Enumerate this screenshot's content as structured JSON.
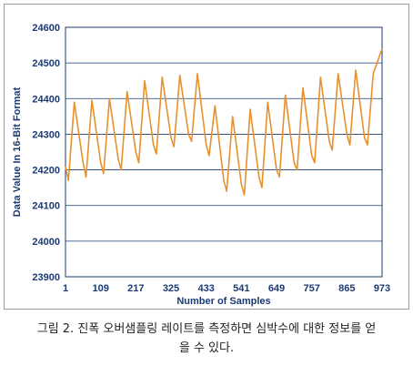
{
  "chart_data": {
    "type": "line",
    "xlabel": "Number of Samples",
    "ylabel": "Data Value In 16-Bit Format",
    "ylim": [
      23900,
      24600
    ],
    "xlim": [
      1,
      973
    ],
    "yticks": [
      "24600",
      "24500",
      "24400",
      "24300",
      "24200",
      "24100",
      "24000",
      "23900"
    ],
    "xticks": [
      "1",
      "109",
      "217",
      "325",
      "433",
      "541",
      "649",
      "757",
      "865",
      "973"
    ],
    "grid": "horizontal",
    "series": [
      {
        "color": "#e8902b",
        "x": [
          1,
          10,
          28,
          55,
          64,
          82,
          109,
          118,
          136,
          163,
          172,
          190,
          217,
          226,
          244,
          271,
          280,
          298,
          325,
          334,
          352,
          379,
          388,
          406,
          433,
          442,
          460,
          487,
          496,
          514,
          541,
          550,
          568,
          595,
          604,
          622,
          649,
          658,
          676,
          703,
          712,
          730,
          757,
          766,
          784,
          811,
          820,
          838,
          865,
          874,
          892,
          919,
          928,
          946,
          973
        ],
        "y": [
          24210,
          24170,
          24390,
          24220,
          24180,
          24395,
          24220,
          24190,
          24400,
          24230,
          24200,
          24420,
          24250,
          24220,
          24450,
          24270,
          24245,
          24460,
          24290,
          24265,
          24465,
          24300,
          24280,
          24470,
          24270,
          24240,
          24380,
          24170,
          24140,
          24350,
          24160,
          24130,
          24370,
          24180,
          24150,
          24390,
          24200,
          24180,
          24410,
          24220,
          24200,
          24430,
          24240,
          24220,
          24460,
          24280,
          24255,
          24470,
          24300,
          24270,
          24480,
          24290,
          24270,
          24470,
          24540
        ]
      }
    ]
  },
  "caption": {
    "line1": "그림 2. 진폭 오버샘플링 레이트를 측정하면 심박수에 대한 정보를 얻",
    "line2": "을 수 있다."
  }
}
